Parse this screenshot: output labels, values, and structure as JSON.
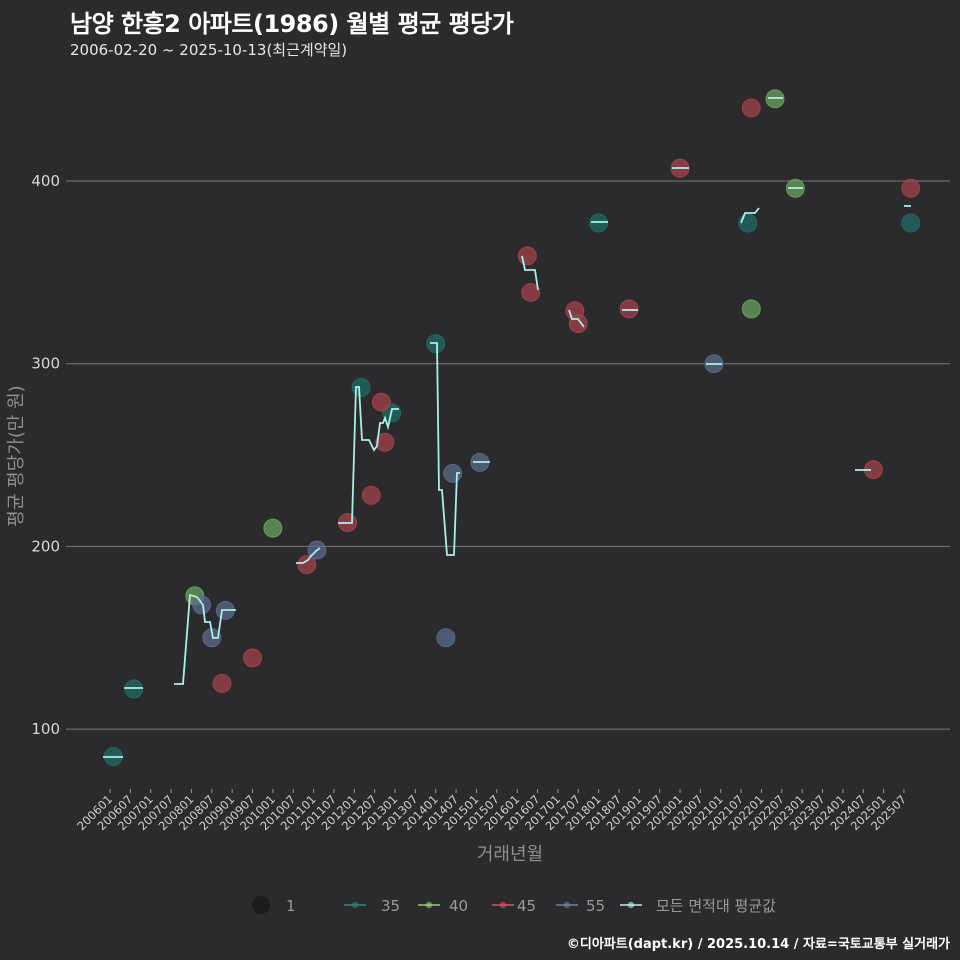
{
  "header": {
    "title": "남양 한흥2 아파트(1986) 월별 평균 평당가",
    "subtitle": "2006-02-20 ~ 2025-10-13(최근계약일)"
  },
  "footer": {
    "credit": "©디아파트(dapt.kr) / 2025.10.14 / 자료=국토교통부 실거래가"
  },
  "colors": {
    "background": "#2b2a2c",
    "grid": "#7a7a7a",
    "s35": "#1f6b66",
    "s40": "#6aa35b",
    "s45": "#a3434a",
    "s55": "#5b6b8a",
    "avg": "#a8f0ea"
  },
  "legend": {
    "size_label": "1",
    "items": [
      {
        "key": "35",
        "label": "35",
        "color": "#2a8a84"
      },
      {
        "key": "40",
        "label": "40",
        "color": "#8fd36f"
      },
      {
        "key": "45",
        "label": "45",
        "color": "#e0535c"
      },
      {
        "key": "55",
        "label": "55",
        "color": "#6f82a8"
      },
      {
        "key": "avg",
        "label": "모든 면적대 평균값",
        "color": "#b8f3ee"
      }
    ]
  },
  "chart_data": {
    "type": "scatter",
    "title": "남양 한흥2 아파트(1986) 월별 평균 평당가",
    "subtitle": "2006-02-20 ~ 2025-10-13(최근계약일)",
    "xlabel": "거래년월",
    "ylabel": "평균 평당가(만 원)",
    "ylim": [
      65,
      460
    ],
    "yticks": [
      100,
      200,
      300,
      400
    ],
    "xticks": [
      "200601",
      "200607",
      "200701",
      "200707",
      "200801",
      "200807",
      "200901",
      "200907",
      "201001",
      "201007",
      "201101",
      "201107",
      "201201",
      "201207",
      "201301",
      "201307",
      "201401",
      "201407",
      "201501",
      "201507",
      "201601",
      "201607",
      "201701",
      "201707",
      "201801",
      "201807",
      "201901",
      "201907",
      "202001",
      "202007",
      "202101",
      "202107",
      "202201",
      "202207",
      "202301",
      "202307",
      "202401",
      "202407",
      "202501",
      "202507"
    ],
    "grid": true,
    "legend_position": "bottom",
    "series": [
      {
        "name": "35",
        "points": [
          [
            "200602",
            85
          ],
          [
            "200608",
            122
          ],
          [
            "201203",
            287
          ],
          [
            "201212",
            273
          ],
          [
            "201401",
            311
          ],
          [
            "201801",
            377
          ],
          [
            "202109",
            377
          ],
          [
            "202509",
            377
          ]
        ]
      },
      {
        "name": "40",
        "points": [
          [
            "200802",
            173
          ],
          [
            "201001",
            210
          ],
          [
            "202110",
            330
          ],
          [
            "202205",
            445
          ],
          [
            "202211",
            396
          ]
        ]
      },
      {
        "name": "45",
        "points": [
          [
            "200810",
            125
          ],
          [
            "200907",
            139
          ],
          [
            "201011",
            190
          ],
          [
            "201111",
            213
          ],
          [
            "201206",
            228
          ],
          [
            "201209",
            279
          ],
          [
            "201210",
            257
          ],
          [
            "201604",
            359
          ],
          [
            "201605",
            339
          ],
          [
            "201706",
            329
          ],
          [
            "201707",
            322
          ],
          [
            "201810",
            330
          ],
          [
            "202001",
            407
          ],
          [
            "202110",
            440
          ],
          [
            "202410",
            242
          ],
          [
            "202509",
            396
          ]
        ]
      },
      {
        "name": "55",
        "points": [
          [
            "200804",
            168
          ],
          [
            "200807",
            150
          ],
          [
            "200811",
            165
          ],
          [
            "201102",
            198
          ],
          [
            "201404",
            150
          ],
          [
            "201406",
            240
          ],
          [
            "201502",
            246
          ],
          [
            "202011",
            300
          ]
        ]
      },
      {
        "name": "모든 면적대 평균값",
        "points": [
          [
            "200602",
            85
          ],
          [
            "200608",
            122
          ],
          [
            "200810",
            125
          ],
          [
            "200802",
            173
          ],
          [
            "200804",
            168
          ],
          [
            "200807",
            159
          ],
          [
            "200808",
            150
          ],
          [
            "200811",
            165
          ],
          [
            "200907",
            139
          ],
          [
            "201001",
            210
          ],
          [
            "201011",
            190
          ],
          [
            "201102",
            198
          ],
          [
            "201111",
            213
          ],
          [
            "201203",
            287
          ],
          [
            "201206",
            257
          ],
          [
            "201209",
            268
          ],
          [
            "201210",
            266
          ],
          [
            "201212",
            273
          ],
          [
            "201401",
            311
          ],
          [
            "201404",
            230
          ],
          [
            "201405",
            195
          ],
          [
            "201406",
            240
          ],
          [
            "201502",
            246
          ],
          [
            "201604",
            359
          ],
          [
            "201605",
            339
          ],
          [
            "201706",
            329
          ],
          [
            "201707",
            322
          ],
          [
            "201801",
            377
          ],
          [
            "201810",
            330
          ],
          [
            "202001",
            407
          ],
          [
            "202011",
            300
          ],
          [
            "202109",
            377
          ],
          [
            "202110",
            385
          ],
          [
            "202205",
            445
          ],
          [
            "202211",
            396
          ],
          [
            "202410",
            242
          ],
          [
            "202509",
            386
          ]
        ]
      }
    ]
  },
  "plot": {
    "avg_path": [
      [
        [
          103,
          757
        ],
        [
          113,
          757
        ],
        [
          123,
          757
        ]
      ],
      [
        [
          124,
          688
        ],
        [
          133,
          688
        ],
        [
          143,
          688
        ]
      ],
      [
        [
          174,
          684
        ],
        [
          183,
          684
        ],
        [
          183,
          684
        ],
        [
          190,
          595
        ],
        [
          197,
          597
        ],
        [
          203,
          605
        ],
        [
          205,
          622
        ],
        [
          210,
          622
        ],
        [
          213,
          638
        ],
        [
          218,
          638
        ],
        [
          222,
          610
        ],
        [
          236,
          610
        ]
      ],
      [
        [
          296,
          563
        ],
        [
          303,
          563
        ],
        [
          308,
          560
        ],
        [
          311,
          556
        ],
        [
          316,
          551
        ],
        [
          320,
          548
        ]
      ],
      [
        [
          338,
          523
        ],
        [
          352,
          523
        ],
        [
          356,
          387
        ],
        [
          359,
          387
        ],
        [
          362,
          440
        ],
        [
          369,
          440
        ],
        [
          374,
          450
        ],
        [
          377,
          446
        ],
        [
          380,
          423
        ],
        [
          383,
          423
        ],
        [
          385,
          418
        ],
        [
          388,
          427
        ],
        [
          392,
          409
        ],
        [
          399,
          409
        ]
      ],
      [
        [
          430,
          343
        ],
        [
          437,
          343
        ],
        [
          439,
          490
        ],
        [
          442,
          490
        ],
        [
          447,
          555
        ],
        [
          454,
          555
        ],
        [
          457,
          473
        ],
        [
          460,
          473
        ]
      ],
      [
        [
          473,
          462
        ],
        [
          490,
          462
        ]
      ],
      [
        [
          522,
          256
        ],
        [
          525,
          270
        ],
        [
          535,
          270
        ],
        [
          538,
          290
        ]
      ],
      [
        [
          569,
          310
        ],
        [
          572,
          319
        ],
        [
          578,
          319
        ],
        [
          584,
          327
        ]
      ],
      [
        [
          591,
          222
        ],
        [
          608,
          222
        ]
      ],
      [
        [
          622,
          310
        ],
        [
          638,
          310
        ]
      ],
      [
        [
          672,
          168
        ],
        [
          689,
          168
        ]
      ],
      [
        [
          706,
          364
        ],
        [
          722,
          364
        ]
      ],
      [
        [
          741,
          223
        ],
        [
          745,
          213
        ],
        [
          755,
          213
        ],
        [
          759,
          208
        ]
      ],
      [
        [
          768,
          98
        ],
        [
          783,
          98
        ]
      ],
      [
        [
          788,
          188
        ],
        [
          803,
          188
        ]
      ],
      [
        [
          855,
          470
        ],
        [
          871,
          470
        ]
      ],
      [
        [
          904,
          206
        ],
        [
          911,
          206
        ]
      ]
    ]
  }
}
